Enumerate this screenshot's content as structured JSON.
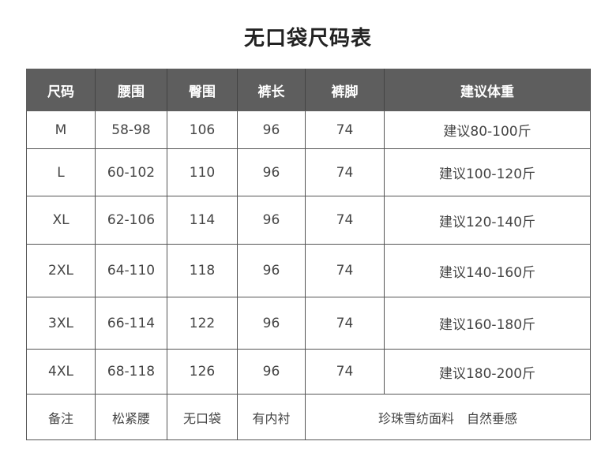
{
  "title": "无口袋尺码表",
  "table": {
    "headers": [
      "尺码",
      "腰围",
      "臀围",
      "裤长",
      "裤脚",
      "建议体重"
    ],
    "rows": [
      [
        "M",
        "58-98",
        "106",
        "96",
        "74",
        "建议80-100斤"
      ],
      [
        "L",
        "60-102",
        "110",
        "96",
        "74",
        "建议100-120斤"
      ],
      [
        "XL",
        "62-106",
        "114",
        "96",
        "74",
        "建议120-140斤"
      ],
      [
        "2XL",
        "64-110",
        "118",
        "96",
        "74",
        "建议140-160斤"
      ],
      [
        "3XL",
        "66-114",
        "122",
        "96",
        "74",
        "建议160-180斤"
      ],
      [
        "4XL",
        "68-118",
        "126",
        "96",
        "74",
        "建议180-200斤"
      ]
    ],
    "note": [
      "备注",
      "松紧腰",
      "无口袋",
      "有内衬",
      "珍珠雪纺面料　自然垂感"
    ]
  },
  "colors": {
    "header_bg": "#5e5e5e",
    "header_text": "#ffffff"
  }
}
